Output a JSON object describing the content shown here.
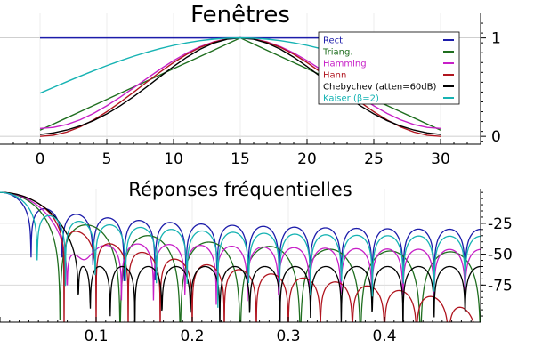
{
  "chart_data": [
    {
      "type": "line",
      "title": "Fenêtres",
      "x_ticks": [
        0,
        5,
        10,
        15,
        20,
        25,
        30
      ],
      "y_ticks": [
        0,
        1
      ],
      "xlim": [
        -3,
        33
      ],
      "ylim": [
        -0.08,
        1.25
      ],
      "grid": true,
      "legend_position": "top-right",
      "window_length": 31,
      "series": [
        {
          "name": "Rect",
          "color": "#1c1caa",
          "window": "rect"
        },
        {
          "name": "Triang.",
          "color": "#1f6e1f",
          "window": "triang"
        },
        {
          "name": "Hamming",
          "color": "#c71fc7",
          "window": "hamming"
        },
        {
          "name": "Hann",
          "color": "#b0151f",
          "window": "hann"
        },
        {
          "name": "Chebychev (atten=60dB)",
          "color": "#000000",
          "window": "chebyshev"
        },
        {
          "name": "Kaiser (β=2)",
          "color": "#16b3b3",
          "window": "kaiser"
        }
      ]
    },
    {
      "type": "line",
      "title": "Réponses fréquentielles",
      "x_ticks": [
        0.1,
        0.2,
        0.3,
        0.4
      ],
      "y_ticks": [
        -25,
        -50,
        -75
      ],
      "xlim": [
        0,
        0.5
      ],
      "ylim": [
        -105,
        3
      ],
      "ylabel_side": "right",
      "grid": true,
      "series": [
        {
          "color": "#1c1caa",
          "window": "rect"
        },
        {
          "color": "#1f6e1f",
          "window": "triang"
        },
        {
          "color": "#c71fc7",
          "window": "hamming"
        },
        {
          "color": "#b0151f",
          "window": "hann"
        },
        {
          "color": "#000000",
          "window": "chebyshev"
        },
        {
          "color": "#16b3b3",
          "window": "kaiser"
        }
      ]
    }
  ]
}
